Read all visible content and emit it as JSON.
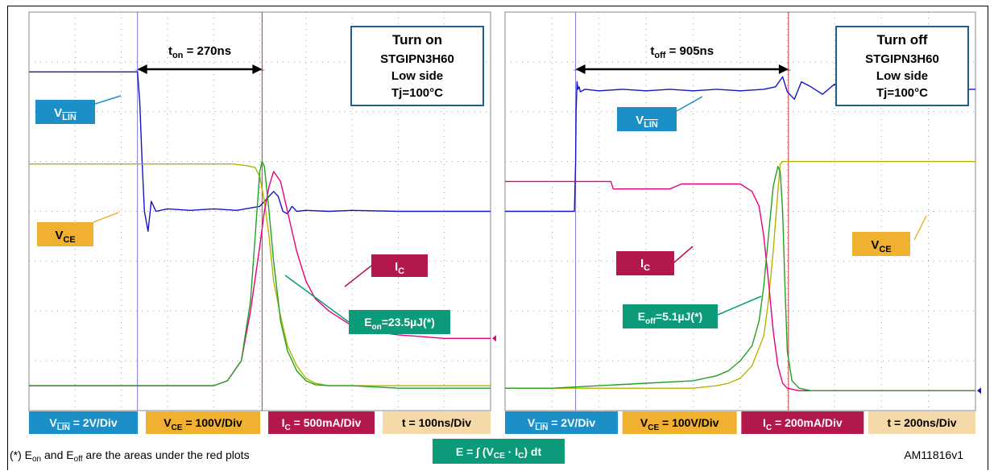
{
  "figure_id": "AM11816v1",
  "footnote": {
    "prefix": "(*) E",
    "on_sub": "on",
    "mid": " and E",
    "off_sub": "off",
    "suffix": " are the areas under the red plots"
  },
  "formula": {
    "text": "E = ∫ (V",
    "sub1": "CE",
    "mid": " · I",
    "sub2": "C",
    "end": ") dt"
  },
  "colors": {
    "vlin": "#1414c8",
    "vce": "#b4b400",
    "ic": "#e6007e",
    "e": "#22a022",
    "cursor_left": "#7b7bd6",
    "cursor_right": "#c0392b",
    "box_vlin": "#1b8fc6",
    "box_vce": "#f0b030",
    "box_ic": "#b3184a",
    "box_t": "#f6d9a8",
    "box_e": "#0b9b7a",
    "title_border": "#1f5f8f"
  },
  "chart_data": [
    {
      "type": "line",
      "id": "turn-on",
      "title": "Turn on",
      "subtitle_lines": [
        "STGIPN3H60",
        "Low side",
        "Tj=100°C"
      ],
      "time_label": {
        "main": "t",
        "sub": "on",
        "value": "= 270ns"
      },
      "scales": [
        {
          "sig": "V",
          "sub": "LIN",
          "overline": true,
          "val": "= 2V/Div",
          "color_key": "box_vlin",
          "text": "#ffffff"
        },
        {
          "sig": "V",
          "sub": "CE",
          "overline": false,
          "val": "= 100V/Div",
          "color_key": "box_vce",
          "text": "#000000"
        },
        {
          "sig": "I",
          "sub": "C",
          "overline": false,
          "val": "= 500mA/Div",
          "color_key": "box_ic",
          "text": "#ffffff"
        },
        {
          "sig": "t",
          "sub": "",
          "overline": false,
          "val": "= 100ns/Div",
          "color_key": "box_t",
          "text": "#000000"
        }
      ],
      "labels": {
        "vlin": {
          "main": "V",
          "sub": "LIN"
        },
        "vce": {
          "main": "V",
          "sub": "CE"
        },
        "ic": {
          "main": "I",
          "sub": "C"
        },
        "e": {
          "main": "E",
          "sub": "on",
          "value": "=23.5µJ(*)"
        }
      },
      "x_unit": "ns",
      "x_range": [
        0,
        1000
      ],
      "y_unit": "divisions",
      "y_range": [
        0,
        8
      ],
      "cursors": [
        {
          "x": 235,
          "role": "start"
        },
        {
          "x": 505,
          "role": "end"
        }
      ],
      "series": [
        {
          "key": "vlin",
          "x": [
            0,
            235,
            240,
            245,
            250,
            258,
            265,
            275,
            300,
            350,
            400,
            450,
            500,
            520,
            530,
            540,
            550,
            560,
            570,
            580,
            600,
            650,
            700,
            800,
            900,
            1000
          ],
          "y": [
            6.8,
            6.8,
            6.2,
            5.0,
            4.0,
            3.6,
            4.2,
            4.0,
            4.05,
            4.02,
            4.05,
            4.02,
            4.1,
            4.3,
            4.4,
            4.3,
            4.0,
            3.95,
            4.1,
            4.0,
            4.02,
            4.0,
            4.02,
            4.0,
            4.0,
            4.0
          ]
        },
        {
          "key": "vce",
          "x": [
            0,
            150,
            300,
            440,
            470,
            490,
            500,
            510,
            520,
            530,
            545,
            560,
            580,
            600,
            620,
            650,
            700,
            800,
            900,
            1000
          ],
          "y": [
            4.95,
            4.95,
            4.95,
            4.95,
            4.92,
            4.88,
            4.7,
            4.2,
            3.5,
            2.6,
            1.9,
            1.3,
            0.9,
            0.65,
            0.55,
            0.5,
            0.5,
            0.5,
            0.5,
            0.5
          ]
        },
        {
          "key": "ic",
          "x": [
            0,
            150,
            300,
            400,
            430,
            460,
            480,
            500,
            510,
            520,
            530,
            545,
            560,
            580,
            600,
            620,
            650,
            700,
            750,
            800,
            900,
            1000
          ],
          "y": [
            0.5,
            0.5,
            0.5,
            0.5,
            0.6,
            1.0,
            2.0,
            3.3,
            4.0,
            4.5,
            4.8,
            4.6,
            4.0,
            3.2,
            2.6,
            2.25,
            2.0,
            1.7,
            1.58,
            1.52,
            1.45,
            1.45
          ]
        },
        {
          "key": "e",
          "x": [
            0,
            150,
            300,
            400,
            430,
            460,
            480,
            490,
            500,
            505,
            510,
            520,
            530,
            545,
            560,
            580,
            600,
            620,
            650,
            700,
            800,
            900,
            1000
          ],
          "y": [
            0.5,
            0.5,
            0.5,
            0.5,
            0.6,
            1.0,
            2.2,
            3.5,
            4.8,
            5.0,
            4.9,
            4.0,
            3.0,
            1.8,
            1.2,
            0.8,
            0.6,
            0.52,
            0.5,
            0.5,
            0.45,
            0.45,
            0.45
          ]
        }
      ]
    },
    {
      "type": "line",
      "id": "turn-off",
      "title": "Turn off",
      "subtitle_lines": [
        "STGIPN3H60",
        "Low side",
        "Tj=100°C"
      ],
      "time_label": {
        "main": "t",
        "sub": "off",
        "value": "= 905ns"
      },
      "scales": [
        {
          "sig": "V",
          "sub": "LIN",
          "overline": true,
          "val": "= 2V/Div",
          "color_key": "box_vlin",
          "text": "#ffffff"
        },
        {
          "sig": "V",
          "sub": "CE",
          "overline": false,
          "val": "= 100V/Div",
          "color_key": "box_vce",
          "text": "#000000"
        },
        {
          "sig": "I",
          "sub": "C",
          "overline": false,
          "val": "= 200mA/Div",
          "color_key": "box_ic",
          "text": "#ffffff"
        },
        {
          "sig": "t",
          "sub": "",
          "overline": false,
          "val": "= 200ns/Div",
          "color_key": "box_t",
          "text": "#000000"
        }
      ],
      "labels": {
        "vlin": {
          "main": "V",
          "sub": "LIN"
        },
        "vce": {
          "main": "V",
          "sub": "CE"
        },
        "ic": {
          "main": "I",
          "sub": "C"
        },
        "e": {
          "main": "E",
          "sub": "off",
          "value": "=5.1µJ(*)"
        }
      },
      "x_unit": "ns",
      "x_range": [
        0,
        2000
      ],
      "y_unit": "divisions",
      "y_range": [
        0,
        8
      ],
      "cursors": [
        {
          "x": 300,
          "role": "start"
        },
        {
          "x": 1205,
          "role": "end"
        }
      ],
      "series": [
        {
          "key": "vlin",
          "x": [
            0,
            295,
            300,
            302,
            306,
            310,
            315,
            320,
            340,
            400,
            500,
            600,
            700,
            800,
            900,
            1000,
            1100,
            1150,
            1180,
            1200,
            1230,
            1260,
            1300,
            1350,
            1400,
            1450,
            1500,
            1600,
            1700,
            1800,
            1900,
            2000
          ],
          "y": [
            4.0,
            4.0,
            5.0,
            6.0,
            6.6,
            6.45,
            6.5,
            6.4,
            6.45,
            6.42,
            6.45,
            6.42,
            6.45,
            6.42,
            6.45,
            6.42,
            6.45,
            6.5,
            6.7,
            6.4,
            6.25,
            6.6,
            6.5,
            6.35,
            6.55,
            6.45,
            6.5,
            6.45,
            6.45,
            6.45,
            6.45,
            6.45
          ]
        },
        {
          "key": "vce",
          "x": [
            0,
            300,
            600,
            800,
            900,
            950,
            1000,
            1050,
            1100,
            1120,
            1140,
            1160,
            1170,
            1180,
            1200,
            1300,
            1500,
            1700,
            1900,
            2000
          ],
          "y": [
            0.45,
            0.45,
            0.45,
            0.45,
            0.5,
            0.55,
            0.65,
            0.9,
            1.5,
            2.2,
            3.2,
            4.4,
            4.95,
            5.0,
            5.0,
            5.0,
            5.0,
            5.0,
            5.0,
            5.0
          ]
        },
        {
          "key": "ic",
          "x": [
            0,
            200,
            450,
            460,
            700,
            750,
            900,
            1000,
            1050,
            1080,
            1100,
            1120,
            1140,
            1160,
            1180,
            1200,
            1250,
            1300,
            1500,
            1700,
            1900,
            2000
          ],
          "y": [
            4.6,
            4.6,
            4.6,
            4.45,
            4.45,
            4.55,
            4.55,
            4.55,
            4.4,
            4.1,
            3.5,
            2.6,
            1.6,
            0.9,
            0.55,
            0.45,
            0.4,
            0.4,
            0.4,
            0.4,
            0.4,
            0.4
          ]
        },
        {
          "key": "e",
          "x": [
            0,
            200,
            400,
            600,
            800,
            900,
            950,
            1000,
            1050,
            1080,
            1100,
            1120,
            1140,
            1160,
            1170,
            1180,
            1190,
            1200,
            1220,
            1250,
            1300,
            1500,
            1700,
            1900,
            2000
          ],
          "y": [
            0.45,
            0.45,
            0.5,
            0.55,
            0.6,
            0.7,
            0.8,
            1.0,
            1.3,
            1.8,
            2.5,
            3.5,
            4.5,
            4.9,
            4.8,
            4.0,
            2.5,
            1.2,
            0.6,
            0.45,
            0.4,
            0.4,
            0.4,
            0.4,
            0.4
          ]
        }
      ]
    }
  ]
}
